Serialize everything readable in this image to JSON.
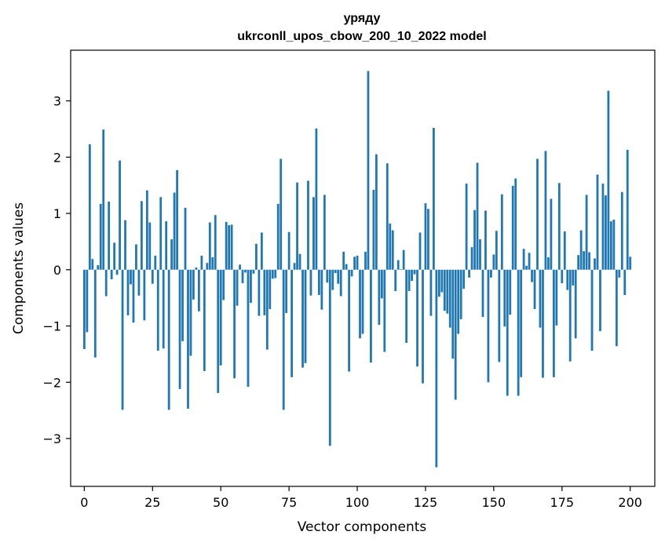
{
  "chart_data": {
    "type": "bar",
    "title": "уряду",
    "subtitle": "ukrconll_upos_cbow_200_10_2022 model",
    "xlabel": "Vector components",
    "ylabel": "Components values",
    "xlim": [
      -5,
      209
    ],
    "ylim": [
      -3.85,
      3.9
    ],
    "xticks": [
      0,
      25,
      50,
      75,
      100,
      125,
      150,
      175,
      200
    ],
    "yticks": [
      -3,
      -2,
      -1,
      0,
      1,
      2,
      3
    ],
    "bar_color": "#1f77b4",
    "grid": false,
    "values": [
      -1.41,
      -1.11,
      2.23,
      0.19,
      -1.56,
      0.08,
      1.17,
      2.49,
      -0.47,
      1.21,
      -0.17,
      0.48,
      -0.09,
      1.94,
      -2.49,
      0.88,
      -0.81,
      -0.26,
      -0.94,
      0.45,
      -0.46,
      1.22,
      -0.9,
      1.41,
      0.84,
      -0.25,
      0.25,
      -1.44,
      1.29,
      -1.4,
      0.86,
      -2.49,
      0.54,
      1.37,
      1.77,
      -2.12,
      -1.27,
      1.1,
      -2.47,
      -1.53,
      -0.53,
      0.04,
      -0.74,
      0.25,
      -1.8,
      0.12,
      0.84,
      0.22,
      0.97,
      -2.19,
      -1.7,
      -0.54,
      0.85,
      0.79,
      0.8,
      -1.93,
      -0.64,
      0.09,
      -0.24,
      -0.05,
      -2.08,
      -0.59,
      -0.07,
      0.46,
      -0.82,
      0.66,
      -0.81,
      -1.42,
      -0.7,
      -0.16,
      -0.15,
      1.17,
      1.97,
      -2.49,
      -0.77,
      0.67,
      -1.91,
      0.12,
      1.55,
      0.28,
      -1.74,
      -1.66,
      1.58,
      -0.46,
      1.29,
      2.51,
      -0.45,
      -0.71,
      1.33,
      -0.23,
      -3.13,
      -0.36,
      -0.06,
      -0.25,
      -0.47,
      0.32,
      0.1,
      -1.81,
      -0.12,
      0.23,
      0.25,
      -1.22,
      -1.14,
      0.32,
      3.53,
      -1.65,
      1.42,
      2.05,
      -0.98,
      -0.51,
      -1.46,
      1.89,
      0.82,
      0.7,
      -0.38,
      0.17,
      0.01,
      0.35,
      -1.3,
      -0.38,
      -0.2,
      -0.08,
      -1.72,
      0.66,
      -2.02,
      1.18,
      1.08,
      -0.82,
      2.52,
      -3.51,
      -0.48,
      -0.4,
      -0.73,
      -0.78,
      -1.03,
      -1.58,
      -2.31,
      -1.14,
      -0.88,
      -0.34,
      1.53,
      -0.14,
      0.4,
      1.06,
      1.9,
      0.54,
      -0.84,
      1.05,
      -2.0,
      -0.14,
      0.27,
      0.69,
      -1.64,
      1.34,
      -1.01,
      -2.24,
      -0.8,
      1.49,
      1.62,
      -2.24,
      -1.91,
      0.37,
      0.07,
      0.3,
      -0.22,
      -0.7,
      1.97,
      -1.03,
      -1.92,
      2.11,
      0.22,
      1.26,
      -1.91,
      -0.99,
      1.54,
      -0.24,
      0.68,
      -0.36,
      -1.63,
      -0.28,
      -1.22,
      0.26,
      0.7,
      0.33,
      1.33,
      0.31,
      -1.44,
      0.2,
      1.69,
      -1.09,
      1.53,
      1.32,
      3.18,
      0.86,
      0.89,
      -1.36,
      -0.14,
      1.38,
      -0.45,
      2.13,
      0.23
    ]
  }
}
